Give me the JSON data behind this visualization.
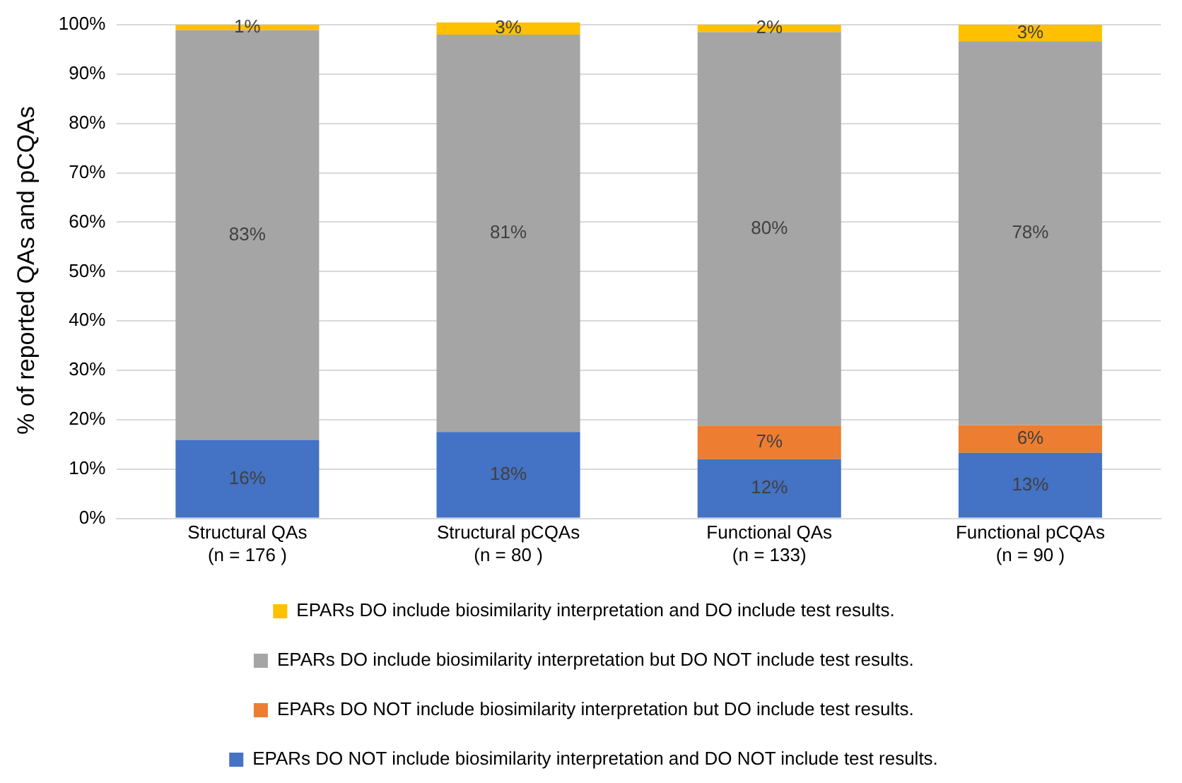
{
  "chart_data": {
    "type": "bar",
    "stacked": true,
    "ylabel": "% of reported QAs and pCQAs",
    "categories": [
      "Structural QAs\n(n = 176 )",
      "Structural pCQAs\n(n = 80 )",
      "Functional QAs\n(n = 133)",
      "Functional pCQAs\n(n = 90 )"
    ],
    "series": [
      {
        "name": "EPARs DO NOT include biosimilarity interpretation and DO NOT include test results.",
        "color": "#4472c4",
        "values": [
          15.9,
          17.5,
          12.0,
          13.3
        ],
        "value_labels": [
          "16%",
          "18%",
          "12%",
          "13%"
        ]
      },
      {
        "name": "EPARs DO NOT include biosimilarity interpretation but DO include test results.",
        "color": "#ed7d31",
        "values": [
          null,
          null,
          6.8,
          5.6
        ],
        "value_labels": [
          null,
          null,
          "7%",
          "6%"
        ]
      },
      {
        "name": "EPARs DO include biosimilarity interpretation but DO NOT include test results.",
        "color": "#a5a5a5",
        "values": [
          83.0,
          80.5,
          79.7,
          77.8
        ],
        "value_labels": [
          "83%",
          "81%",
          "80%",
          "78%"
        ]
      },
      {
        "name": "EPARs DO include biosimilarity interpretation and DO include test results.",
        "color": "#ffc000",
        "values": [
          1.1,
          2.5,
          1.5,
          3.3
        ],
        "value_labels": [
          "1%",
          "3%",
          "2%",
          "3%"
        ]
      }
    ],
    "ylim": [
      0,
      100.5
    ],
    "yticks": [
      {
        "value": 0,
        "label": "0%"
      },
      {
        "value": 10,
        "label": "10%"
      },
      {
        "value": 20,
        "label": "20%"
      },
      {
        "value": 30,
        "label": "30%"
      },
      {
        "value": 40,
        "label": "40%"
      },
      {
        "value": 50,
        "label": "50%"
      },
      {
        "value": 60,
        "label": "60%"
      },
      {
        "value": 70,
        "label": "70%"
      },
      {
        "value": 80,
        "label": "80%"
      },
      {
        "value": 90,
        "label": "90%"
      },
      {
        "value": 100,
        "label": "100%"
      }
    ],
    "grid": "y",
    "legend": "bottom"
  }
}
